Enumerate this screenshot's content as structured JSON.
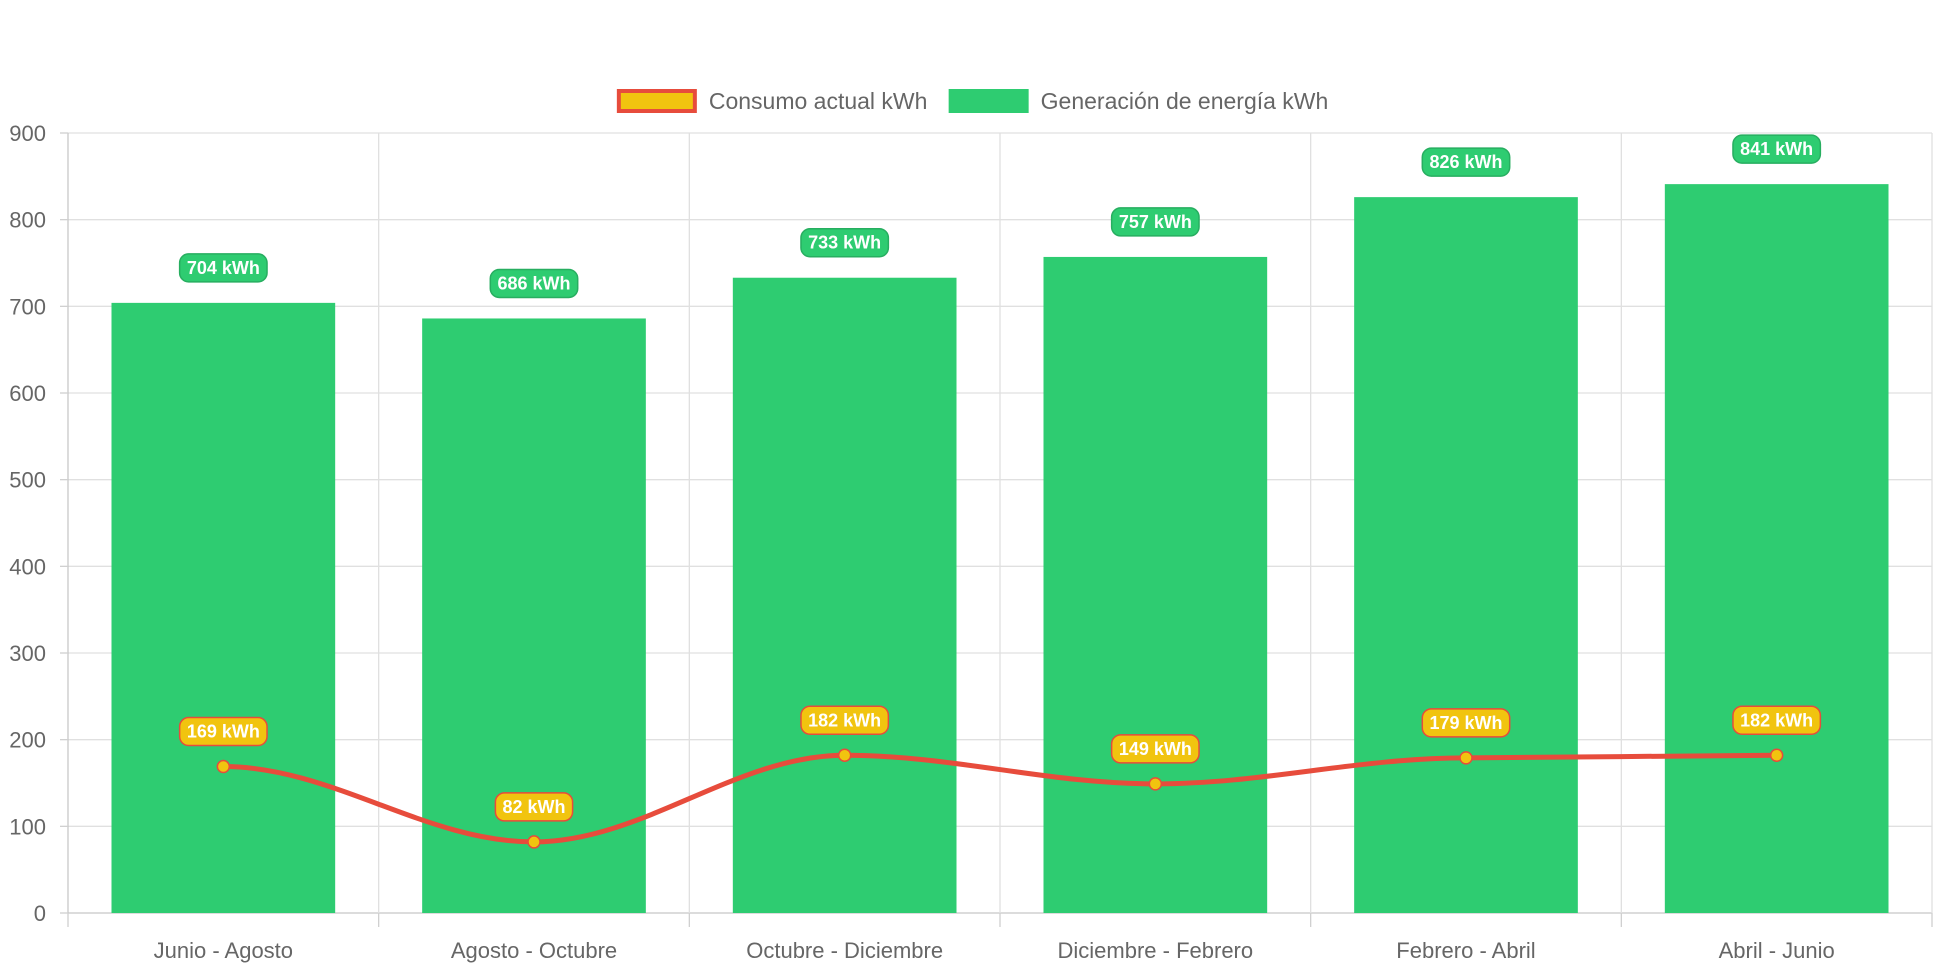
{
  "chart_data": {
    "type": "bar",
    "categories": [
      "Junio - Agosto",
      "Agosto - Octubre",
      "Octubre - Diciembre",
      "Diciembre - Febrero",
      "Febrero - Abril",
      "Abril - Junio"
    ],
    "series": [
      {
        "name": "Generación de energía kWh",
        "type": "bar",
        "values": [
          704,
          686,
          733,
          757,
          826,
          841
        ],
        "labels": [
          "704 kWh",
          "686 kWh",
          "733 kWh",
          "757 kWh",
          "826 kWh",
          "841 kWh"
        ],
        "color": "#2ecc71"
      },
      {
        "name": "Consumo actual kWh",
        "type": "line",
        "values": [
          169,
          82,
          182,
          149,
          179,
          182
        ],
        "labels": [
          "169 kWh",
          "82 kWh",
          "182 kWh",
          "149 kWh",
          "179 kWh",
          "182 kWh"
        ],
        "color": "#e74c3c",
        "point_color": "#f1c40f"
      }
    ],
    "legend": [
      {
        "label": "Consumo actual kWh",
        "fill": "#f1c40f",
        "stroke": "#e74c3c"
      },
      {
        "label": "Generación de energía kWh",
        "fill": "#2ecc71",
        "stroke": "#2ecc71"
      }
    ],
    "legend_position": "top",
    "ylim": [
      0,
      900
    ],
    "yticks": [
      "0",
      "100",
      "200",
      "300",
      "400",
      "500",
      "600",
      "700",
      "800",
      "900"
    ],
    "grid": true,
    "title": "",
    "xlabel": "",
    "ylabel": ""
  }
}
